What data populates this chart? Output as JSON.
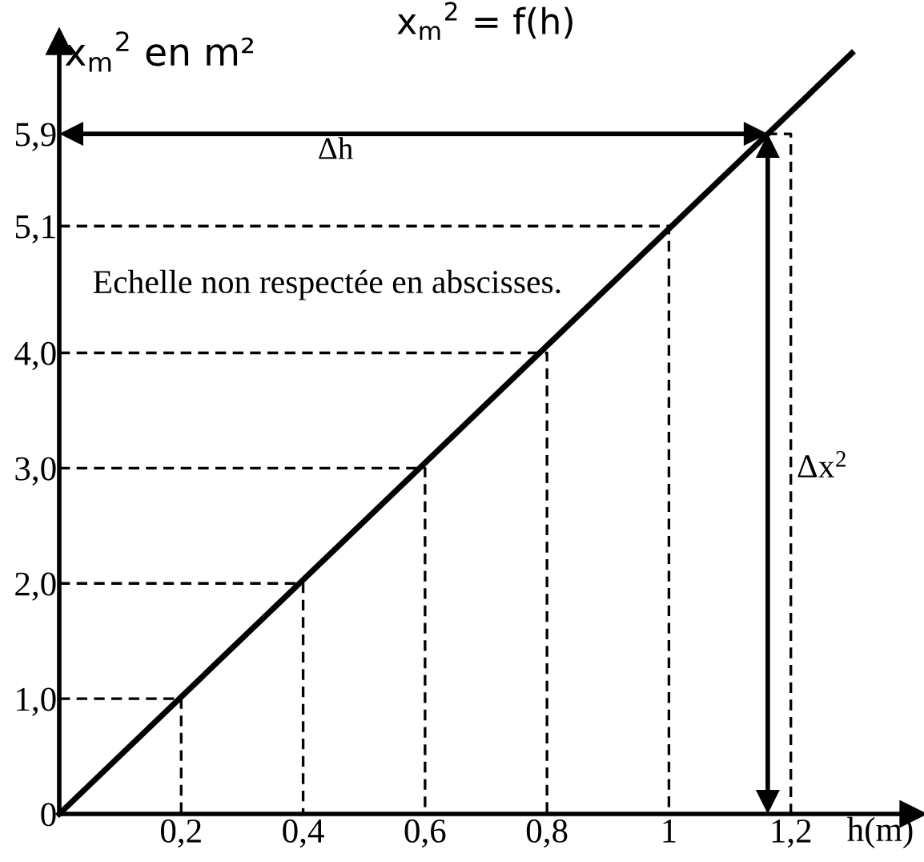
{
  "chart_data": {
    "type": "line",
    "title": "x$_{m}$$^{2}$ = f(h)",
    "xlabel": "h(m)",
    "ylabel": "x$_{m}$$^{2}$ en m²",
    "series": [
      {
        "x": [
          0,
          1.3
        ],
        "values": [
          0,
          6.6
        ],
        "color": "#000000",
        "line_style": "solid"
      },
      {
        "x": [
          0,
          0.2,
          0.2
        ],
        "values": [
          1.0,
          1.0,
          0
        ],
        "color": "#000000",
        "line_style": "dashed"
      },
      {
        "x": [
          0,
          0.4,
          0.4
        ],
        "values": [
          2.0,
          2.0,
          0
        ],
        "color": "#000000",
        "line_style": "dashed"
      },
      {
        "x": [
          0,
          0.6,
          0.6
        ],
        "values": [
          3.0,
          3.0,
          0
        ],
        "color": "#000000",
        "line_style": "dashed"
      },
      {
        "x": [
          0,
          0.8,
          0.8
        ],
        "values": [
          4.0,
          4.0,
          0
        ],
        "color": "#000000",
        "line_style": "dashed"
      },
      {
        "x": [
          0,
          1,
          1
        ],
        "values": [
          5.1,
          5.1,
          0
        ],
        "color": "#000000",
        "line_style": "dashed"
      },
      {
        "x": [
          1.16,
          1.2,
          1.2
        ],
        "values": [
          5.9,
          5.9,
          0
        ],
        "color": "#000000",
        "line_style": "dashed"
      }
    ],
    "xlim": [
      0,
      1.4
    ],
    "ylim": [
      0,
      6.7
    ],
    "xticks": [
      {
        "value": 0.2,
        "label": "0,2"
      },
      {
        "value": 0.4,
        "label": "0,4"
      },
      {
        "value": 0.6,
        "label": "0,6"
      },
      {
        "value": 0.8,
        "label": "0,8"
      },
      1,
      {
        "value": 1.2,
        "label": "1,2"
      }
    ],
    "yticks": [
      0,
      {
        "value": 1.0,
        "label": "1,0"
      },
      {
        "value": 2.0,
        "label": "2,0"
      },
      {
        "value": 3.0,
        "label": "3,0"
      },
      {
        "value": 4.0,
        "label": "4,0"
      },
      {
        "value": 5.1,
        "label": "5,1"
      },
      {
        "value": 5.9,
        "label": "5,9"
      }
    ],
    "annotations": [
      "Δh",
      "Δx$^{2}$",
      "Echelle non respectée en abscisses."
    ]
  }
}
